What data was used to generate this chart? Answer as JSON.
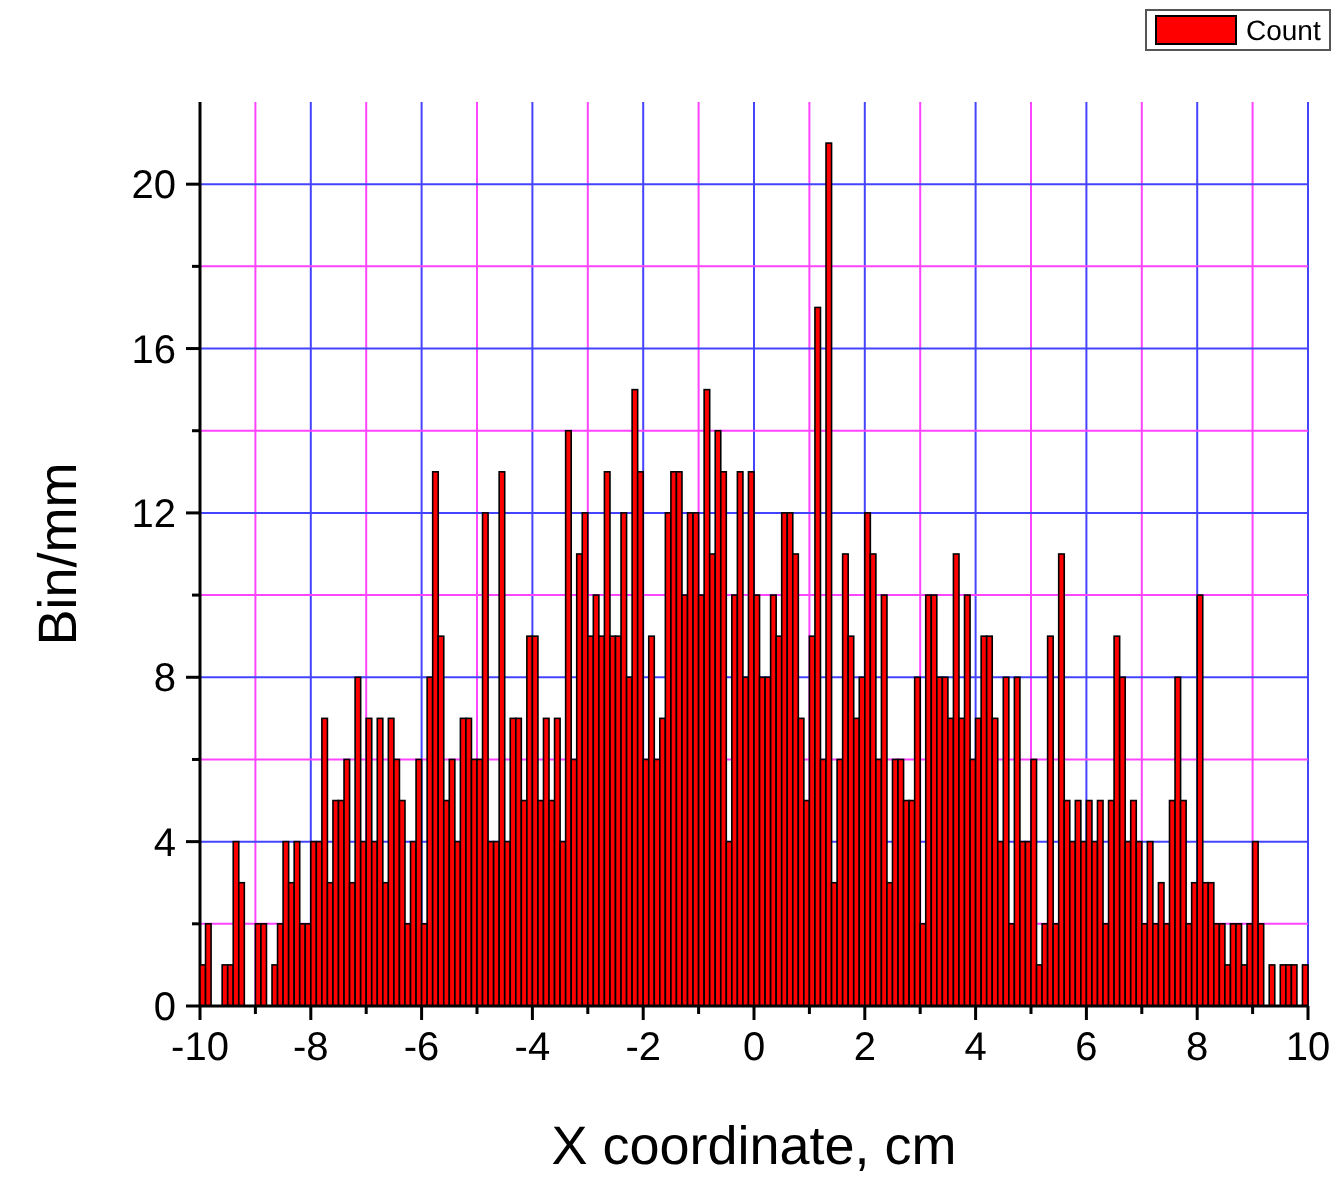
{
  "chart_data": {
    "type": "histogram",
    "xlabel": "X coordinate, cm",
    "ylabel": "Bin/mm",
    "bins": [
      -10,
      -9.9,
      -9.8,
      -9.7,
      -9.6,
      -9.5,
      -9.4,
      -9.3,
      -9.2,
      -9.1,
      -9,
      -8.9,
      -8.8,
      -8.7,
      -8.6,
      -8.5,
      -8.4,
      -8.3,
      -8.2,
      -8.1,
      -8,
      -7.9,
      -7.8,
      -7.7,
      -7.6,
      -7.5,
      -7.4,
      -7.3,
      -7.2,
      -7.1,
      -7,
      -6.9,
      -6.8,
      -6.7,
      -6.6,
      -6.5,
      -6.4,
      -6.3,
      -6.2,
      -6.1,
      -6,
      -5.9,
      -5.8,
      -5.7,
      -5.6,
      -5.5,
      -5.4,
      -5.3,
      -5.2,
      -5.1,
      -5,
      -4.9,
      -4.8,
      -4.7,
      -4.6,
      -4.5,
      -4.4,
      -4.3,
      -4.2,
      -4.1,
      -4,
      -3.9,
      -3.8,
      -3.7,
      -3.6,
      -3.5,
      -3.4,
      -3.3,
      -3.2,
      -3.1,
      -3,
      -2.9,
      -2.8,
      -2.7,
      -2.6,
      -2.5,
      -2.4,
      -2.3,
      -2.2,
      -2.1,
      -2,
      -1.9,
      -1.8,
      -1.7,
      -1.6,
      -1.5,
      -1.4,
      -1.3,
      -1.2,
      -1.1,
      -1,
      -0.9,
      -0.8,
      -0.7,
      -0.6,
      -0.5,
      -0.4,
      -0.3,
      -0.2,
      -0.1,
      0,
      0.1,
      0.2,
      0.3,
      0.4,
      0.5,
      0.6,
      0.7,
      0.8,
      0.9,
      1,
      1.1,
      1.2,
      1.3,
      1.4,
      1.5,
      1.6,
      1.7,
      1.8,
      1.9,
      2,
      2.1,
      2.2,
      2.3,
      2.4,
      2.5,
      2.6,
      2.7,
      2.8,
      2.9,
      3,
      3.1,
      3.2,
      3.3,
      3.4,
      3.5,
      3.6,
      3.7,
      3.8,
      3.9,
      4,
      4.1,
      4.2,
      4.3,
      4.4,
      4.5,
      4.6,
      4.7,
      4.8,
      4.9,
      5,
      5.1,
      5.2,
      5.3,
      5.4,
      5.5,
      5.6,
      5.7,
      5.8,
      5.9,
      6,
      6.1,
      6.2,
      6.3,
      6.4,
      6.5,
      6.6,
      6.7,
      6.8,
      6.9,
      7,
      7.1,
      7.2,
      7.3,
      7.4,
      7.5,
      7.6,
      7.7,
      7.8,
      7.9,
      8,
      8.1,
      8.2,
      8.3,
      8.4,
      8.5,
      8.6,
      8.7,
      8.8,
      8.9,
      9,
      9.1,
      9.2,
      9.3,
      9.4,
      9.5,
      9.6,
      9.7,
      9.8,
      9.9,
      10
    ],
    "series": [
      {
        "name": "Count",
        "color": "#ff0000",
        "values": [
          1,
          2,
          0,
          0,
          1,
          1,
          4,
          3,
          0,
          0,
          2,
          2,
          0,
          1,
          2,
          4,
          3,
          4,
          2,
          2,
          4,
          4,
          7,
          3,
          5,
          5,
          6,
          3,
          8,
          4,
          7,
          4,
          7,
          3,
          7,
          6,
          5,
          2,
          4,
          6,
          2,
          8,
          13,
          9,
          5,
          6,
          4,
          7,
          7,
          6,
          6,
          12,
          4,
          4,
          13,
          4,
          7,
          7,
          5,
          9,
          9,
          5,
          7,
          5,
          7,
          4,
          14,
          6,
          11,
          12,
          9,
          10,
          9,
          13,
          9,
          9,
          12,
          8,
          15,
          13,
          6,
          9,
          6,
          7,
          12,
          13,
          13,
          10,
          12,
          12,
          10,
          15,
          11,
          14,
          13,
          4,
          10,
          13,
          8,
          13,
          10,
          8,
          8,
          10,
          9,
          12,
          12,
          11,
          7,
          5,
          9,
          17,
          6,
          21,
          3,
          6,
          11,
          9,
          7,
          8,
          12,
          11,
          6,
          10,
          3,
          6,
          6,
          5,
          5,
          8,
          2,
          10,
          10,
          8,
          8,
          7,
          11,
          7,
          10,
          6,
          7,
          9,
          9,
          7,
          4,
          8,
          2,
          8,
          4,
          4,
          6,
          1,
          2,
          9,
          2,
          11,
          5,
          4,
          5,
          4,
          5,
          4,
          5,
          2,
          5,
          9,
          8,
          4,
          5,
          4,
          2,
          4,
          2,
          3,
          2,
          5,
          8,
          5,
          2,
          3,
          10,
          3,
          3,
          2,
          2,
          1,
          2,
          2,
          1,
          2,
          4,
          2,
          0,
          1,
          0,
          1,
          1,
          1,
          0,
          1
        ]
      }
    ],
    "xlim": [
      -10,
      10
    ],
    "xticks": [
      -10,
      {
        "value": -9,
        "label": null
      },
      -8,
      {
        "value": -7,
        "label": null
      },
      -6,
      {
        "value": -5,
        "label": null
      },
      -4,
      {
        "value": -3,
        "label": null
      },
      -2,
      {
        "value": -1,
        "label": null
      },
      0,
      {
        "value": 1,
        "label": null
      },
      2,
      {
        "value": 3,
        "label": null
      },
      4,
      {
        "value": 5,
        "label": null
      },
      6,
      {
        "value": 7,
        "label": null
      },
      8,
      {
        "value": 9,
        "label": null
      },
      10
    ],
    "ylim": [
      0,
      22
    ],
    "yticks": [
      0,
      {
        "value": 2,
        "label": null
      },
      4,
      {
        "value": 6,
        "label": null
      },
      8,
      {
        "value": 10,
        "label": null
      },
      12,
      {
        "value": 14,
        "label": null
      },
      16,
      {
        "value": 18,
        "label": null
      },
      20
    ],
    "grid": true,
    "legend": "top right"
  }
}
